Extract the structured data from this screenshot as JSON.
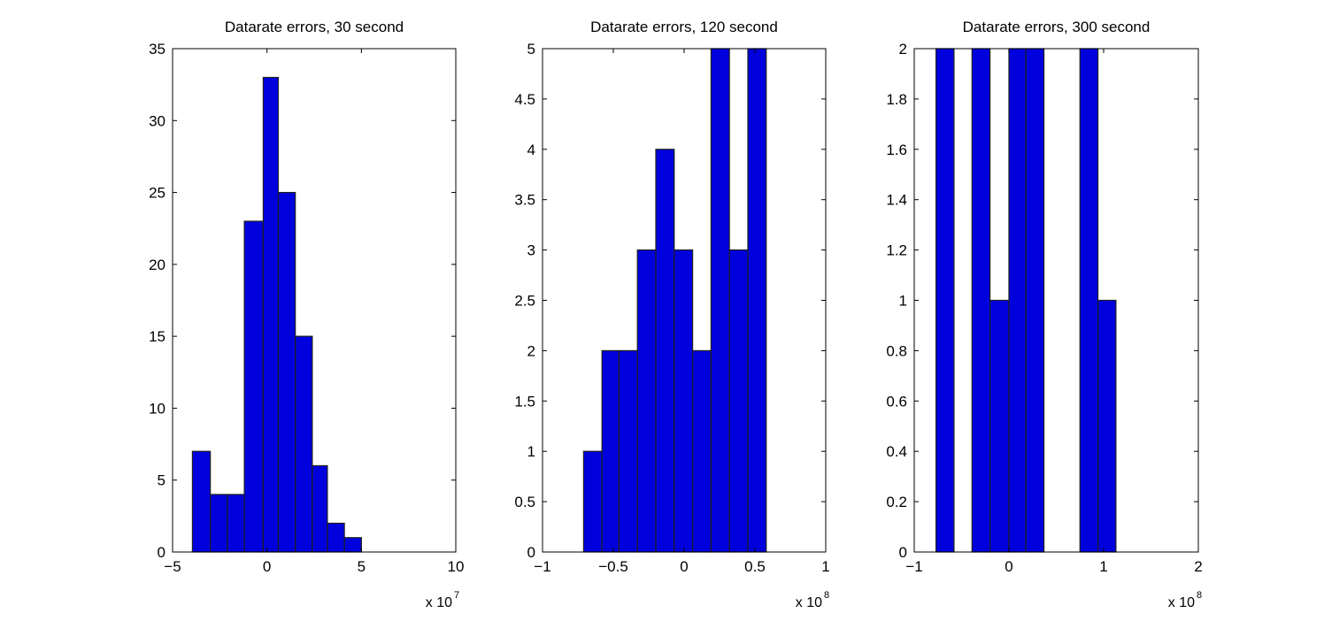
{
  "colors": {
    "bar_fill": "#0000dd",
    "bar_edge": "#202020",
    "axes": "#000000",
    "background": "#ffffff"
  },
  "chart_data": [
    {
      "type": "bar",
      "title": "Datarate errors, 30 second",
      "xlim": [
        -5,
        10
      ],
      "ylim": [
        0,
        35
      ],
      "xticks": [
        -5,
        0,
        5,
        10
      ],
      "xtick_labels": [
        "−5",
        "0",
        "5",
        "10"
      ],
      "yticks": [
        0,
        5,
        10,
        15,
        20,
        25,
        30,
        35
      ],
      "ytick_labels": [
        "0",
        "5",
        "10",
        "15",
        "20",
        "25",
        "30",
        "35"
      ],
      "x_multiplier_base": "x 10",
      "x_multiplier_exp": "7",
      "bin_edges": [
        -3.95,
        -3.0,
        -2.1,
        -1.2,
        -0.2,
        0.6,
        1.5,
        2.4,
        3.2,
        4.1,
        5.0
      ],
      "values": [
        7,
        4,
        4,
        23,
        33,
        25,
        15,
        6,
        2,
        1
      ],
      "value_labels": [
        "7",
        "4",
        "4",
        "23",
        "33",
        "25",
        "15",
        "6",
        "2",
        "1"
      ]
    },
    {
      "type": "bar",
      "title": "Datarate errors, 120 second",
      "xlim": [
        -1,
        1
      ],
      "ylim": [
        0,
        5
      ],
      "xticks": [
        -1,
        -0.5,
        0,
        0.5,
        1
      ],
      "xtick_labels": [
        "−1",
        "−0.5",
        "0",
        "0.5",
        "1"
      ],
      "yticks": [
        0,
        0.5,
        1,
        1.5,
        2,
        2.5,
        3,
        3.5,
        4,
        4.5,
        5
      ],
      "ytick_labels": [
        "0",
        "0.5",
        "1",
        "1.5",
        "2",
        "2.5",
        "3",
        "3.5",
        "4",
        "4.5",
        "5"
      ],
      "x_multiplier_base": "x 10",
      "x_multiplier_exp": "8",
      "bin_edges": [
        -0.71,
        -0.58,
        -0.46,
        -0.33,
        -0.2,
        -0.07,
        0.06,
        0.19,
        0.32,
        0.45,
        0.58
      ],
      "values": [
        1,
        2,
        2,
        3,
        4,
        3,
        2,
        5,
        3,
        5
      ],
      "value_labels": [
        "1",
        "2",
        "2",
        "3",
        "4",
        "3",
        "2",
        "5",
        "3",
        "5"
      ]
    },
    {
      "type": "bar",
      "title": "Datarate errors, 300 second",
      "xlim": [
        -1,
        2
      ],
      "ylim": [
        0,
        2
      ],
      "xticks": [
        -1,
        0,
        1,
        2
      ],
      "xtick_labels": [
        "−1",
        "0",
        "1",
        "2"
      ],
      "yticks": [
        0,
        0.2,
        0.4,
        0.6,
        0.8,
        1,
        1.2,
        1.4,
        1.6,
        1.8,
        2
      ],
      "ytick_labels": [
        "0",
        "0.2",
        "0.4",
        "0.6",
        "0.8",
        "1",
        "1.2",
        "1.4",
        "1.6",
        "1.8",
        "2"
      ],
      "x_multiplier_base": "x 10",
      "x_multiplier_exp": "8",
      "bin_edges": [
        -0.77,
        -0.58,
        -0.39,
        -0.2,
        0.0,
        0.18,
        0.37,
        0.56,
        0.75,
        0.94,
        1.13
      ],
      "values": [
        2,
        0,
        2,
        1,
        2,
        2,
        0,
        0,
        2,
        1
      ],
      "value_labels": [
        "2",
        "0",
        "2",
        "1",
        "2",
        "2",
        "0",
        "0",
        "2",
        "1"
      ]
    }
  ]
}
